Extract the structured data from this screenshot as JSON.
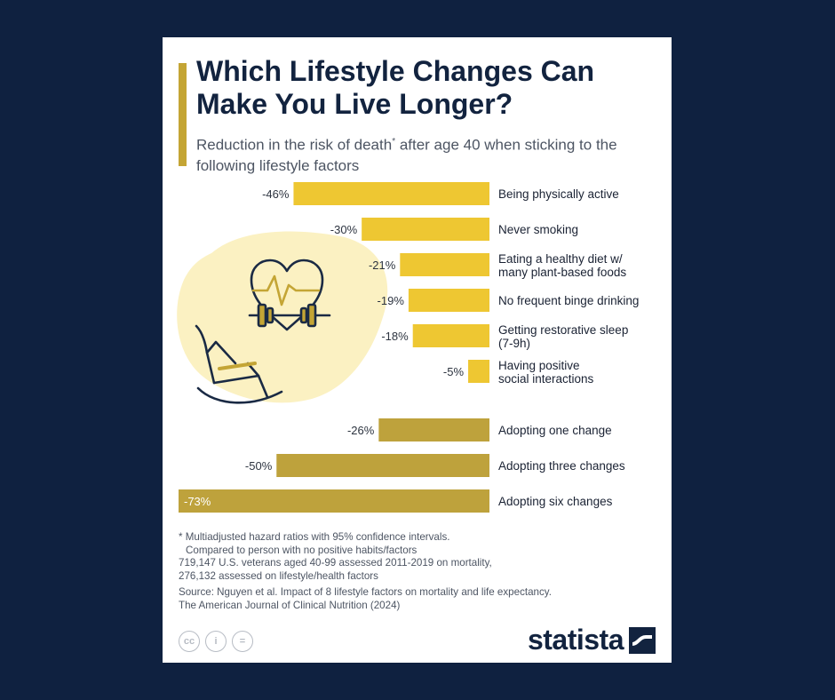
{
  "title": "Which Lifestyle Changes Can Make You Live Longer?",
  "subtitle_pre": "Reduction in the risk of death",
  "subtitle_mark": "*",
  "subtitle_post": " after age 40 when sticking to the following lifestyle factors",
  "colors": {
    "background": "#0f2140",
    "bar_light": "#eec732",
    "bar_dark": "#bea23c",
    "text": "#12233f",
    "accent": "#c4a535"
  },
  "icons": [
    "heart-dumbbell-icon",
    "rocking-chair-icon"
  ],
  "chart_data": {
    "type": "bar",
    "orientation": "horizontal",
    "categories": [
      "Being physically active",
      "Never smoking",
      "Eating a healthy diet w/ many plant-based foods",
      "No frequent binge drinking",
      "Getting restorative sleep (7-9h)",
      "Having positive social interactions",
      "Adopting one change",
      "Adopting three changes",
      "Adopting six changes"
    ],
    "category_lines": [
      [
        "Being physically active"
      ],
      [
        "Never smoking"
      ],
      [
        "Eating a healthy diet w/",
        "many plant-based foods"
      ],
      [
        "No frequent binge drinking"
      ],
      [
        "Getting restorative sleep",
        "(7-9h)"
      ],
      [
        "Having positive",
        "social interactions"
      ],
      [
        "Adopting one change"
      ],
      [
        "Adopting three changes"
      ],
      [
        "Adopting six changes"
      ]
    ],
    "values": [
      -46,
      -30,
      -21,
      -19,
      -18,
      -5,
      -26,
      -50,
      -73
    ],
    "value_labels": [
      "-46%",
      "-30%",
      "-21%",
      "-19%",
      "-18%",
      "-5%",
      "-26%",
      "-50%",
      "-73%"
    ],
    "groups": [
      "factor",
      "factor",
      "factor",
      "factor",
      "factor",
      "factor",
      "combined",
      "combined",
      "combined"
    ],
    "xlim": [
      -73,
      0
    ],
    "unit": "%",
    "legend": "none",
    "grid": false
  },
  "notes": {
    "line1": "* Multiadjusted hazard ratios with 95% confidence intervals.",
    "line2": "Compared to person with no positive habits/factors",
    "line3": "719,147 U.S. veterans aged 40-99 assessed 2011-2019 on mortality,",
    "line4": "276,132 assessed on lifestyle/health factors",
    "source1": "Source: Nguyen et al. Impact of 8 lifestyle factors on mortality and life expectancy.",
    "source2": "The American Journal of Clinical Nutrition (2024)"
  },
  "license": {
    "cc": "cc",
    "by": "i",
    "nd": "="
  },
  "brand": "statista"
}
